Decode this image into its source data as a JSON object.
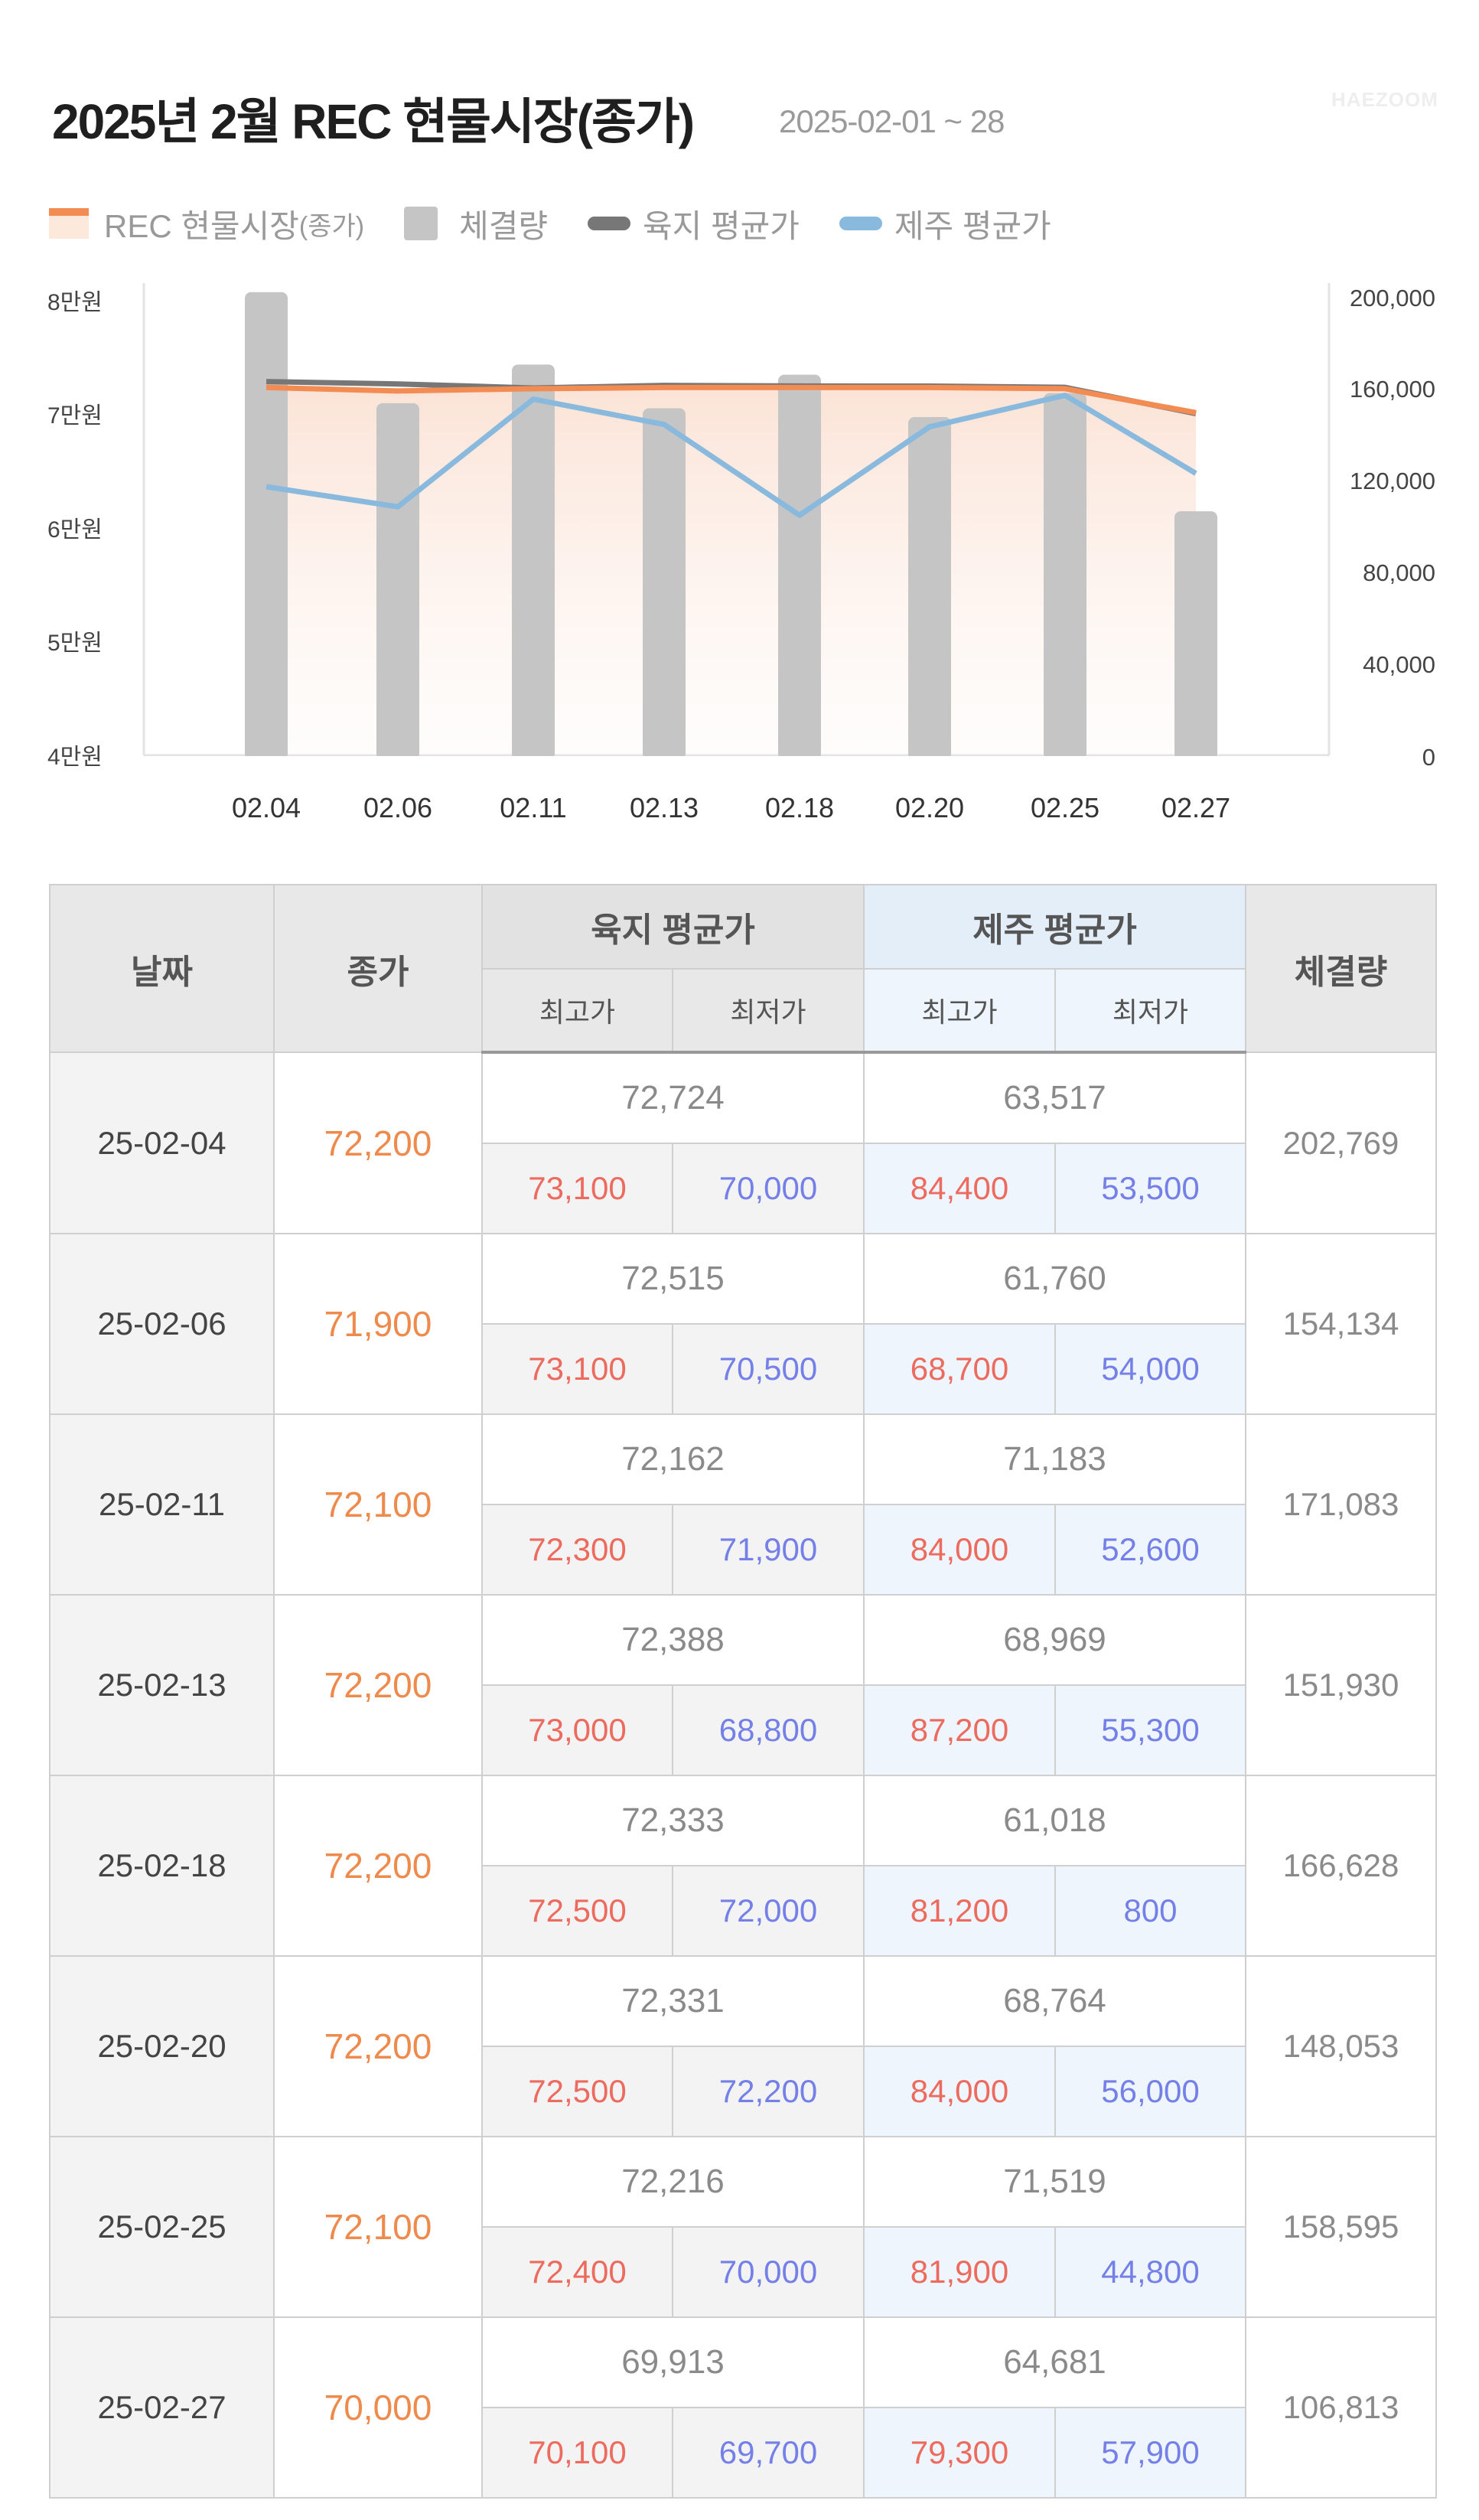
{
  "header": {
    "title": "2025년 2월 REC 현물시장(종가)",
    "date_range": "2025-02-01 ~ 28",
    "watermark": "HAEZOOM"
  },
  "legend": {
    "items": [
      {
        "label": "REC 현물시장",
        "sub": "(종가)",
        "icon": "area-swatch-icon",
        "color": "#f28c52"
      },
      {
        "label": "체결량",
        "icon": "bar-swatch-icon",
        "color": "#c5c5c5"
      },
      {
        "label": "육지 평균가",
        "icon": "line-swatch-icon",
        "color": "#777777"
      },
      {
        "label": "제주 평균가",
        "icon": "line-swatch-icon",
        "color": "#8ab9de"
      }
    ]
  },
  "chart_data": {
    "type": "bar",
    "title": "2025년 2월 REC 현물시장(종가)",
    "subtitle": "2025-02-01 ~ 28",
    "categories": [
      "02.04",
      "02.06",
      "02.11",
      "02.13",
      "02.18",
      "02.20",
      "02.25",
      "02.27"
    ],
    "series": [
      {
        "name": "REC 현물시장(종가)",
        "type": "area",
        "axis": "left",
        "color": "#f28c52",
        "values": [
          72200,
          71900,
          72100,
          72200,
          72200,
          72200,
          72100,
          70000
        ]
      },
      {
        "name": "체결량",
        "type": "bar",
        "axis": "right",
        "color": "#c5c5c5",
        "values": [
          202769,
          154134,
          171083,
          151930,
          166628,
          148053,
          158595,
          106813
        ]
      },
      {
        "name": "육지 평균가",
        "type": "line",
        "axis": "left",
        "color": "#777777",
        "values": [
          72724,
          72515,
          72162,
          72388,
          72333,
          72331,
          72216,
          69913
        ]
      },
      {
        "name": "제주 평균가",
        "type": "line",
        "axis": "left",
        "color": "#8ab9de",
        "values": [
          63517,
          61760,
          71183,
          68969,
          61018,
          68764,
          71519,
          64681
        ]
      }
    ],
    "y_left": {
      "ticks": [
        "8만원",
        "7만원",
        "6만원",
        "5만원",
        "4만원"
      ],
      "range": [
        40000,
        80000
      ]
    },
    "y_right": {
      "ticks": [
        "200,000",
        "160,000",
        "120,000",
        "80,000",
        "40,000",
        "0"
      ],
      "range": [
        0,
        200000
      ]
    },
    "xlabel": "",
    "ylabel": "",
    "grid": false,
    "legend_position": "top-left"
  },
  "axes": {
    "left": [
      "8만원",
      "7만원",
      "6만원",
      "5만원",
      "4만원"
    ],
    "right": [
      "200,000",
      "160,000",
      "120,000",
      "80,000",
      "40,000",
      "0"
    ],
    "x": [
      "02.04",
      "02.06",
      "02.11",
      "02.13",
      "02.18",
      "02.20",
      "02.25",
      "02.27"
    ]
  },
  "table": {
    "headers": {
      "date": "날짜",
      "close": "종가",
      "mainland": "육지 평균가",
      "jeju": "제주 평균가",
      "volume": "체결량",
      "high": "최고가",
      "low": "최저가"
    },
    "rows": [
      {
        "date": "25-02-04",
        "close": "72,200",
        "mainland_avg": "72,724",
        "mainland_high": "73,100",
        "mainland_low": "70,000",
        "jeju_avg": "63,517",
        "jeju_high": "84,400",
        "jeju_low": "53,500",
        "volume": "202,769"
      },
      {
        "date": "25-02-06",
        "close": "71,900",
        "mainland_avg": "72,515",
        "mainland_high": "73,100",
        "mainland_low": "70,500",
        "jeju_avg": "61,760",
        "jeju_high": "68,700",
        "jeju_low": "54,000",
        "volume": "154,134"
      },
      {
        "date": "25-02-11",
        "close": "72,100",
        "mainland_avg": "72,162",
        "mainland_high": "72,300",
        "mainland_low": "71,900",
        "jeju_avg": "71,183",
        "jeju_high": "84,000",
        "jeju_low": "52,600",
        "volume": "171,083"
      },
      {
        "date": "25-02-13",
        "close": "72,200",
        "mainland_avg": "72,388",
        "mainland_high": "73,000",
        "mainland_low": "68,800",
        "jeju_avg": "68,969",
        "jeju_high": "87,200",
        "jeju_low": "55,300",
        "volume": "151,930"
      },
      {
        "date": "25-02-18",
        "close": "72,200",
        "mainland_avg": "72,333",
        "mainland_high": "72,500",
        "mainland_low": "72,000",
        "jeju_avg": "61,018",
        "jeju_high": "81,200",
        "jeju_low": "800",
        "volume": "166,628"
      },
      {
        "date": "25-02-20",
        "close": "72,200",
        "mainland_avg": "72,331",
        "mainland_high": "72,500",
        "mainland_low": "72,200",
        "jeju_avg": "68,764",
        "jeju_high": "84,000",
        "jeju_low": "56,000",
        "volume": "148,053"
      },
      {
        "date": "25-02-25",
        "close": "72,100",
        "mainland_avg": "72,216",
        "mainland_high": "72,400",
        "mainland_low": "70,000",
        "jeju_avg": "71,519",
        "jeju_high": "81,900",
        "jeju_low": "44,800",
        "volume": "158,595"
      },
      {
        "date": "25-02-27",
        "close": "70,000",
        "mainland_avg": "69,913",
        "mainland_high": "70,100",
        "mainland_low": "69,700",
        "jeju_avg": "64,681",
        "jeju_high": "79,300",
        "jeju_low": "57,900",
        "volume": "106,813"
      }
    ]
  }
}
